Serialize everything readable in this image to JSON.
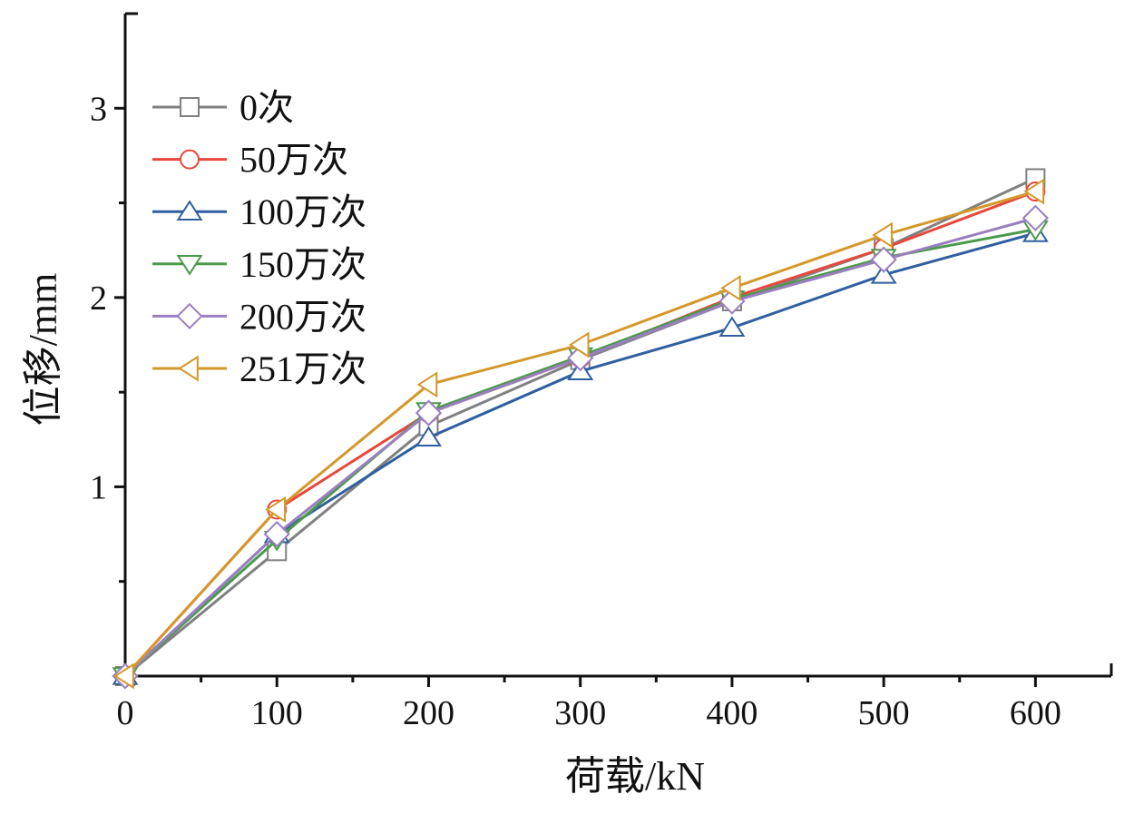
{
  "chart_data": {
    "type": "line",
    "title": "",
    "xlabel": "荷载/kN",
    "ylabel": "位移/mm",
    "xlim": [
      0,
      650
    ],
    "ylim": [
      0,
      3.5
    ],
    "xticks": [
      0,
      100,
      200,
      300,
      400,
      500,
      600
    ],
    "xtick_labels": [
      "0",
      "100",
      "200",
      "300",
      "400",
      "500",
      "600"
    ],
    "yticks": [
      1,
      2,
      3
    ],
    "ytick_labels": [
      "1",
      "2",
      "3"
    ],
    "grid": false,
    "legend_placement": "top-left",
    "x": [
      0,
      100,
      200,
      300,
      400,
      500,
      600
    ],
    "series": [
      {
        "name": "0次",
        "marker": "square",
        "color": "#808080",
        "values": [
          0,
          0.66,
          1.32,
          1.67,
          1.98,
          2.26,
          2.63
        ]
      },
      {
        "name": "50万次",
        "marker": "circle",
        "color": "#e8473c",
        "values": [
          0,
          0.88,
          1.39,
          1.68,
          2.0,
          2.26,
          2.56
        ]
      },
      {
        "name": "100万次",
        "marker": "triangle-up",
        "color": "#2f5fa0",
        "values": [
          0,
          0.75,
          1.26,
          1.61,
          1.84,
          2.12,
          2.34
        ]
      },
      {
        "name": "150万次",
        "marker": "triangle-down",
        "color": "#4a9a4a",
        "values": [
          0,
          0.72,
          1.4,
          1.69,
          1.99,
          2.21,
          2.36
        ]
      },
      {
        "name": "200万次",
        "marker": "diamond",
        "color": "#9a7fc0",
        "values": [
          0,
          0.75,
          1.39,
          1.68,
          1.98,
          2.2,
          2.42
        ]
      },
      {
        "name": "251万次",
        "marker": "triangle-left",
        "color": "#d4982a",
        "values": [
          0,
          0.88,
          1.54,
          1.75,
          2.05,
          2.33,
          2.56
        ]
      }
    ]
  }
}
